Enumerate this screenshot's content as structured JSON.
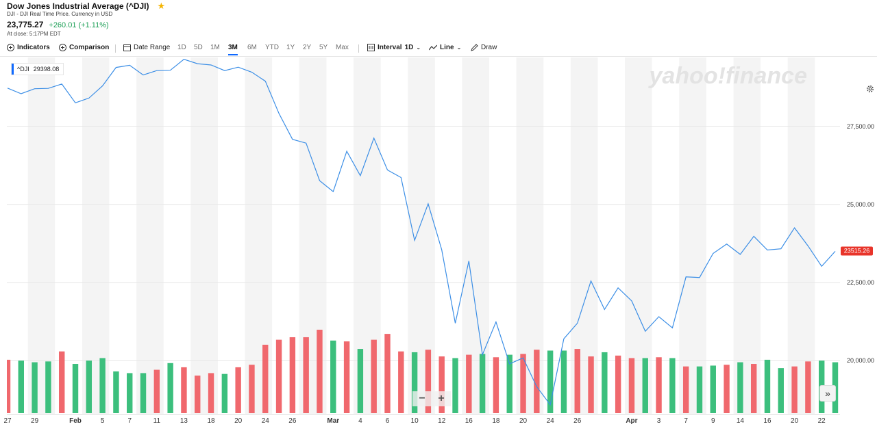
{
  "header": {
    "title": "Dow Jones Industrial Average (^DJI)",
    "subtitle": "DJI - DJI Real Time Price. Currency in USD",
    "price": "23,775.27",
    "change": "+260.01 (+1.11%)",
    "close_time": "At close: 5:17PM EDT"
  },
  "toolbar": {
    "indicators": "Indicators",
    "comparison": "Comparison",
    "date_range": "Date Range",
    "ranges": [
      "1D",
      "5D",
      "1M",
      "3M",
      "6M",
      "YTD",
      "1Y",
      "2Y",
      "5Y",
      "Max"
    ],
    "active_range": "3M",
    "interval_label": "Interval",
    "interval_value": "1D",
    "chart_type": "Line",
    "draw": "Draw"
  },
  "legend": {
    "symbol": "^DJI",
    "value": "29398.08"
  },
  "watermark": "yahoo!finance",
  "last_price_label": "23515.26",
  "colors": {
    "line": "#3b8ee6",
    "up": "#3cbf7d",
    "down": "#f0686d",
    "accent": "#0f69ff"
  },
  "chart_data": {
    "type": "line",
    "title": "",
    "x": [
      "27",
      "28",
      "29",
      "30",
      "31",
      "Feb 3",
      "4",
      "5",
      "6",
      "7",
      "10",
      "11",
      "12",
      "13",
      "14",
      "18",
      "19",
      "20",
      "21",
      "24",
      "25",
      "26",
      "27",
      "28",
      "Mar 2",
      "3",
      "4",
      "5",
      "6",
      "9",
      "10",
      "11",
      "12",
      "13",
      "16",
      "17",
      "18",
      "19",
      "20",
      "23",
      "24",
      "25",
      "26",
      "27",
      "30",
      "31",
      "Apr 1",
      "2",
      "3",
      "6",
      "7",
      "8",
      "9",
      "13",
      "14",
      "15",
      "16",
      "17",
      "20",
      "21",
      "22",
      "23"
    ],
    "x_tick_labels": [
      "27",
      "29",
      "Feb",
      "5",
      "7",
      "11",
      "13",
      "18",
      "20",
      "24",
      "26",
      "Mar",
      "4",
      "6",
      "10",
      "12",
      "16",
      "18",
      "20",
      "24",
      "26",
      "Apr",
      "3",
      "7",
      "9",
      "14",
      "16",
      "20",
      "22"
    ],
    "ylim": [
      18300,
      29700
    ],
    "y_ticks": [
      "20,000.00",
      "22,500.00",
      "25,000.00",
      "27,500.00"
    ],
    "y_tick_values": [
      20000,
      22500,
      25000,
      27500
    ],
    "series": [
      {
        "values": [
          28720,
          28540,
          28700,
          28710,
          28850,
          28250,
          28400,
          28790,
          29380,
          29450,
          29140,
          29280,
          29290,
          29640,
          29500,
          29460,
          29280,
          29390,
          29230,
          28940,
          27910,
          27080,
          26960,
          25760,
          25410,
          26700,
          25920,
          27120,
          26100,
          25860,
          23850,
          25020,
          23550,
          21200,
          23190,
          20190,
          21240,
          19900,
          20090,
          19170,
          18590,
          20700,
          21200,
          22550,
          21640,
          22330,
          21910,
          20940,
          21410,
          21050,
          22680,
          22660,
          23430,
          23730,
          23400,
          23980,
          23540,
          23580,
          24250,
          23670,
          23020,
          23500
        ]
      }
    ],
    "volume": {
      "values": [
        0.64,
        0.63,
        0.61,
        0.62,
        0.74,
        0.59,
        0.63,
        0.66,
        0.5,
        0.48,
        0.48,
        0.52,
        0.6,
        0.55,
        0.45,
        0.48,
        0.47,
        0.55,
        0.58,
        0.82,
        0.88,
        0.91,
        0.91,
        1.0,
        0.87,
        0.86,
        0.77,
        0.88,
        0.95,
        0.74,
        0.73,
        0.76,
        0.68,
        0.66,
        0.7,
        0.71,
        0.67,
        0.7,
        0.71,
        0.76,
        0.75,
        0.75,
        0.77,
        0.68,
        0.73,
        0.69,
        0.66,
        0.66,
        0.67,
        0.66,
        0.56,
        0.56,
        0.57,
        0.58,
        0.61,
        0.59,
        0.64,
        0.54,
        0.56,
        0.62,
        0.63,
        0.61
      ],
      "up": [
        false,
        true,
        true,
        true,
        false,
        true,
        true,
        true,
        true,
        true,
        true,
        false,
        true,
        false,
        false,
        false,
        true,
        false,
        false,
        false,
        false,
        false,
        false,
        false,
        true,
        false,
        true,
        false,
        false,
        false,
        true,
        false,
        false,
        true,
        false,
        true,
        false,
        true,
        false,
        false,
        true,
        true,
        false,
        false,
        true,
        false,
        false,
        true,
        false,
        true,
        false,
        true,
        true,
        false,
        true,
        false,
        true,
        true,
        false,
        false,
        true,
        true
      ]
    }
  }
}
